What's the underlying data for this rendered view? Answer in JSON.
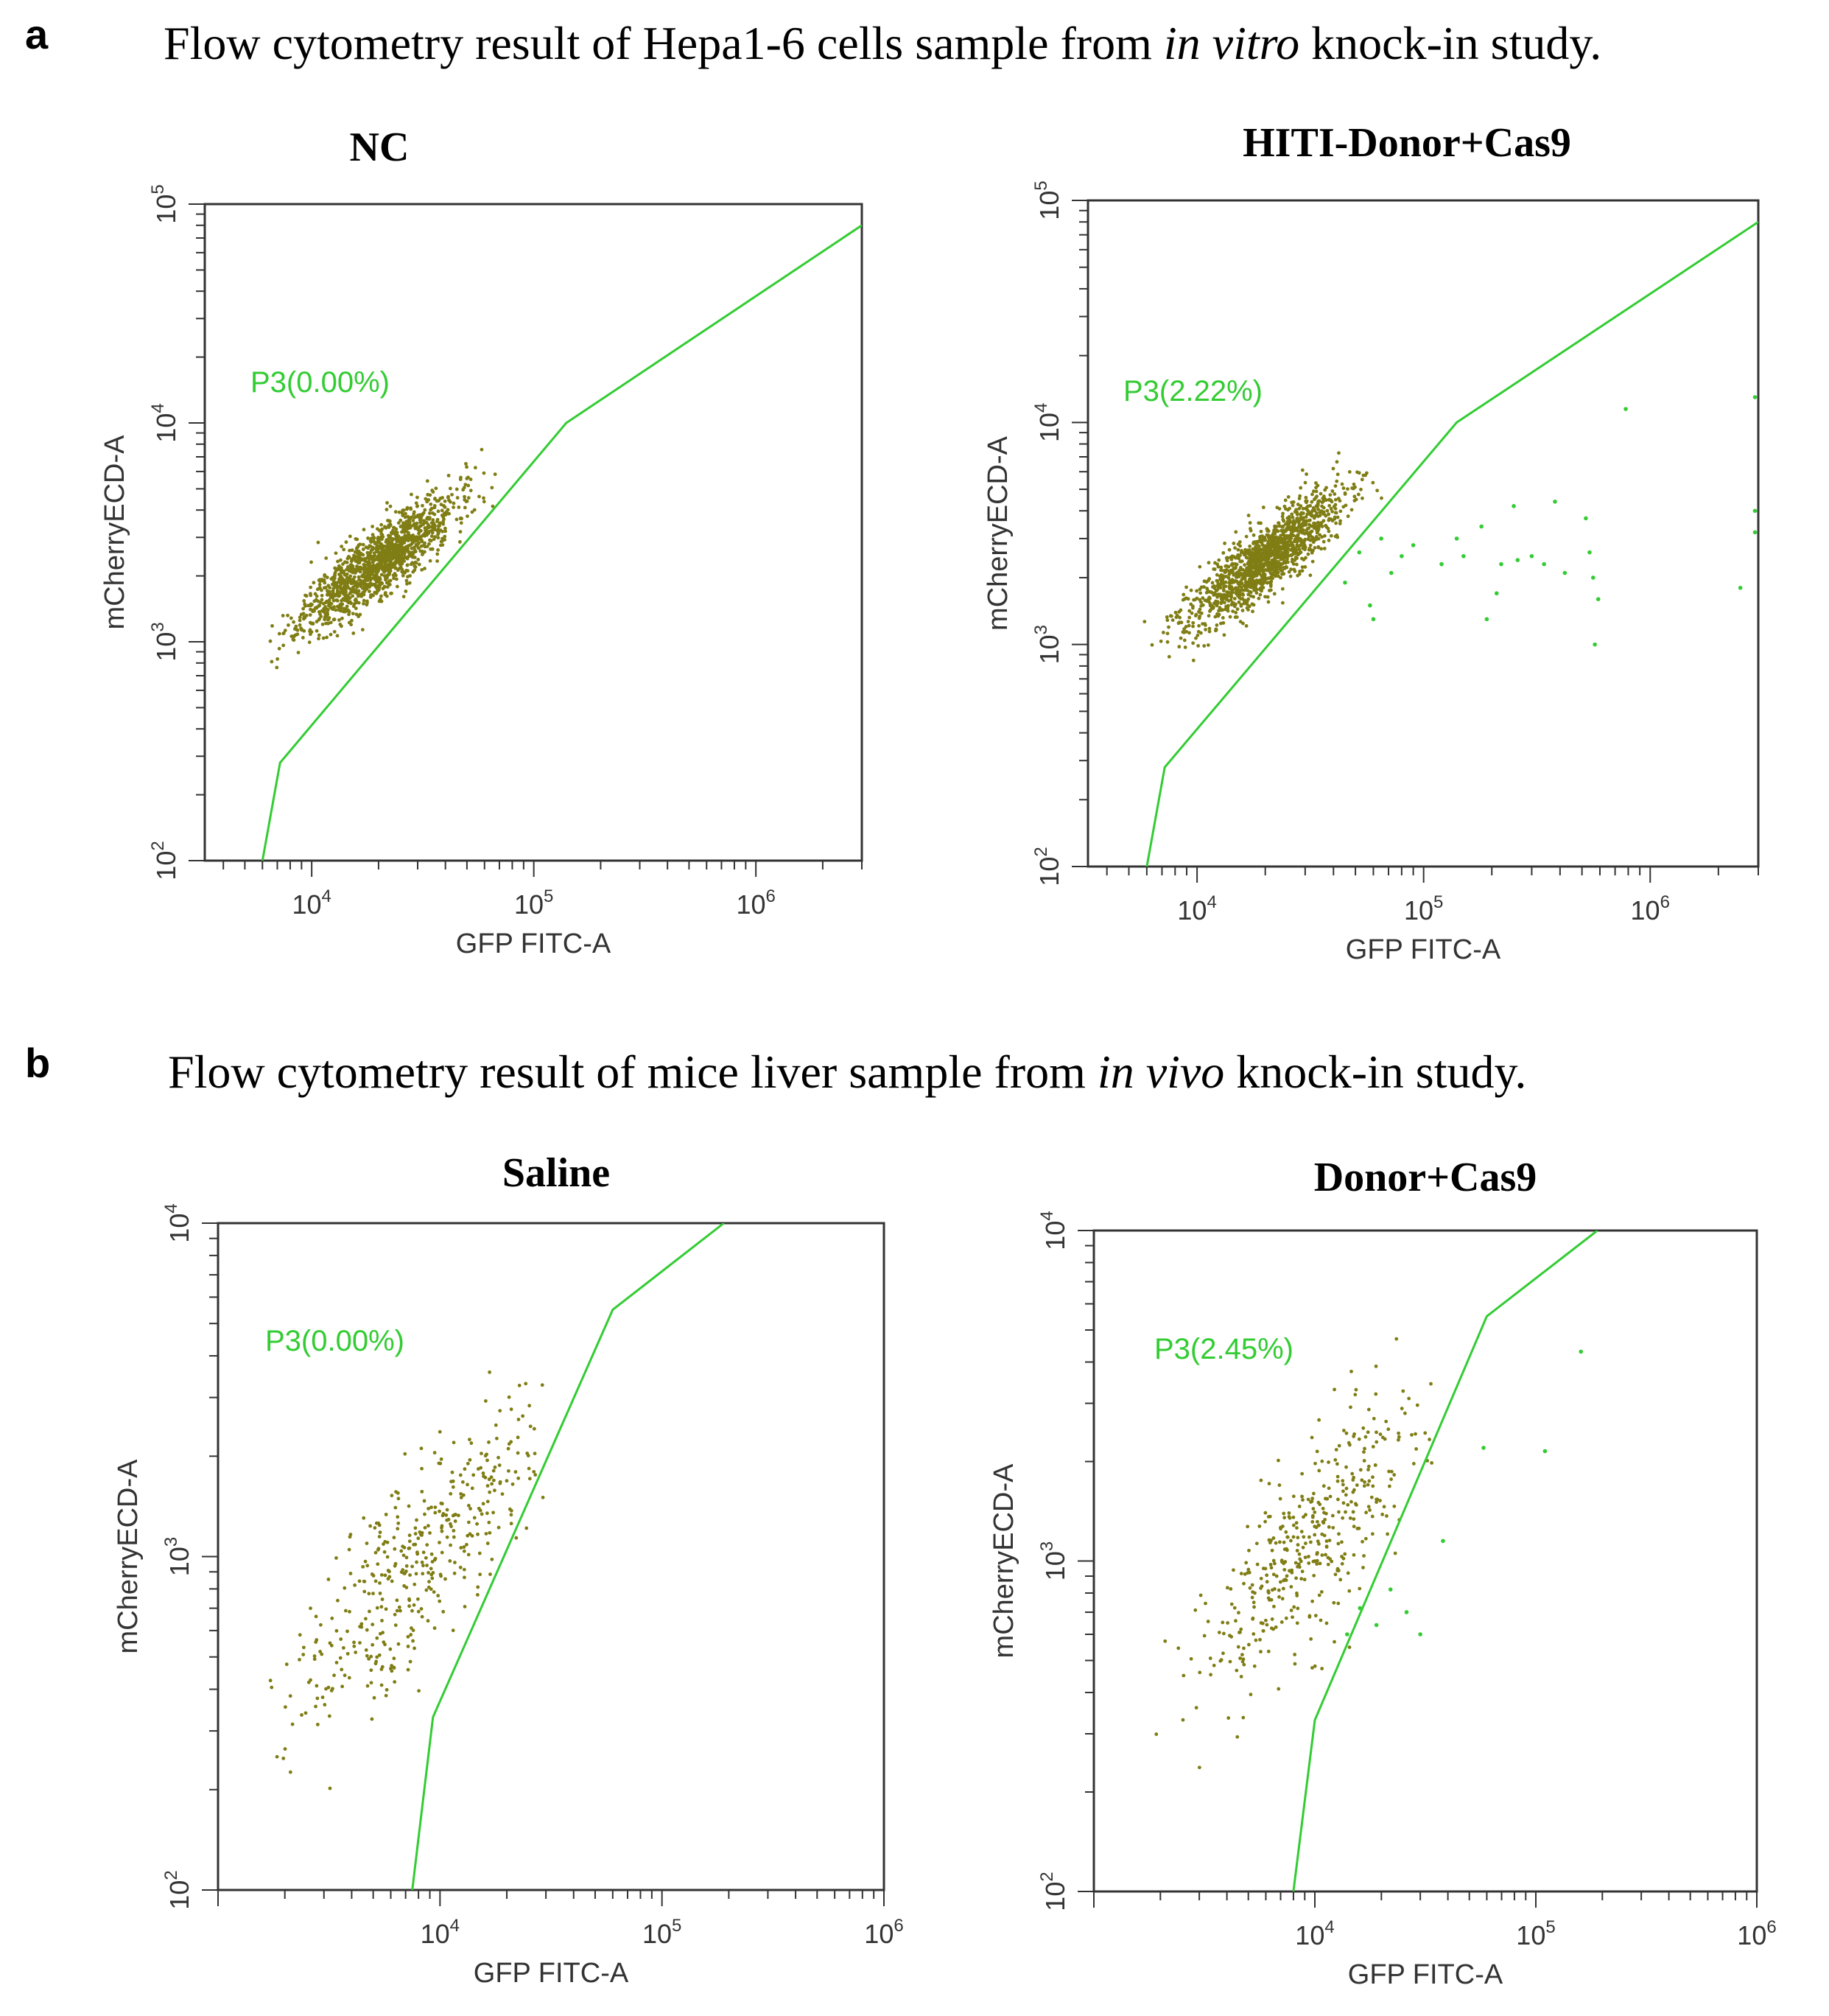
{
  "panels": [
    {
      "letter": "a",
      "title_prefix": "Flow cytometry result of Hepa1-6 cells sample from ",
      "title_italic": "in vitro",
      "title_suffix": " knock-in study."
    },
    {
      "letter": "b",
      "title_prefix": "Flow cytometry result of mice liver sample from ",
      "title_italic": "in vivo",
      "title_suffix": " knock-in study."
    }
  ],
  "colors": {
    "population": "#7f7d14",
    "gate": "#33cc33",
    "axis": "#333333"
  },
  "chart_data": [
    {
      "type": "scatter",
      "title": "NC",
      "xlabel": "GFP FITC-A",
      "ylabel": "mCherryECD-A",
      "xscale": "log",
      "yscale": "log",
      "xlim": [
        3300,
        3000000
      ],
      "ylim": [
        100,
        100000
      ],
      "xtick_labels": [
        {
          "base": "10",
          "exp": "4",
          "value": 10000
        },
        {
          "base": "10",
          "exp": "5",
          "value": 100000
        },
        {
          "base": "10",
          "exp": "6",
          "value": 1000000
        }
      ],
      "ytick_labels": [
        {
          "base": "10",
          "exp": "2",
          "value": 100
        },
        {
          "base": "10",
          "exp": "3",
          "value": 1000
        },
        {
          "base": "10",
          "exp": "4",
          "value": 10000
        },
        {
          "base": "10",
          "exp": "5",
          "value": 100000
        }
      ],
      "gate": {
        "name": "P3",
        "label": "P3(0.00%)",
        "percent": 0.0,
        "boundary": [
          [
            6000,
            100
          ],
          [
            7200,
            280
          ],
          [
            140000,
            10000
          ],
          [
            3000000,
            80000
          ]
        ]
      },
      "population": {
        "n": 1400,
        "seed": 11,
        "center": [
          20000,
          2300
        ],
        "spread": [
          0.17,
          0.15
        ],
        "corr": 0.85,
        "x_range": [
          4500,
          80000
        ],
        "y_range": [
          500,
          23000
        ]
      },
      "gated_events": []
    },
    {
      "type": "scatter",
      "title": "HITI-Donor+Cas9",
      "xlabel": "GFP FITC-A",
      "ylabel": "mCherryECD-A",
      "xscale": "log",
      "yscale": "log",
      "xlim": [
        3300,
        3000000
      ],
      "ylim": [
        100,
        100000
      ],
      "xtick_labels": [
        {
          "base": "10",
          "exp": "4",
          "value": 10000
        },
        {
          "base": "10",
          "exp": "5",
          "value": 100000
        },
        {
          "base": "10",
          "exp": "6",
          "value": 1000000
        }
      ],
      "ytick_labels": [
        {
          "base": "10",
          "exp": "2",
          "value": 100
        },
        {
          "base": "10",
          "exp": "3",
          "value": 1000
        },
        {
          "base": "10",
          "exp": "4",
          "value": 10000
        },
        {
          "base": "10",
          "exp": "5",
          "value": 100000
        }
      ],
      "gate": {
        "name": "P3",
        "label": "P3(2.22%)",
        "percent": 2.22,
        "boundary": [
          [
            6000,
            100
          ],
          [
            7200,
            280
          ],
          [
            140000,
            10000
          ],
          [
            3000000,
            80000
          ]
        ]
      },
      "population": {
        "n": 1400,
        "seed": 23,
        "center": [
          20000,
          2400
        ],
        "spread": [
          0.17,
          0.15
        ],
        "corr": 0.85,
        "x_range": [
          4000,
          90000
        ],
        "y_range": [
          400,
          75000
        ]
      },
      "gated_events": [
        [
          45000,
          1900
        ],
        [
          52000,
          2600
        ],
        [
          58000,
          1500
        ],
        [
          60000,
          1300
        ],
        [
          65000,
          3000
        ],
        [
          72000,
          2100
        ],
        [
          80000,
          2500
        ],
        [
          90000,
          2800
        ],
        [
          120000,
          2300
        ],
        [
          140000,
          3000
        ],
        [
          150000,
          2500
        ],
        [
          180000,
          3400
        ],
        [
          190000,
          1300
        ],
        [
          210000,
          1700
        ],
        [
          220000,
          2300
        ],
        [
          250000,
          4200
        ],
        [
          260000,
          2400
        ],
        [
          300000,
          2500
        ],
        [
          340000,
          2300
        ],
        [
          380000,
          4400
        ],
        [
          420000,
          2100
        ],
        [
          520000,
          3700
        ],
        [
          540000,
          2600
        ],
        [
          560000,
          2000
        ],
        [
          570000,
          1000
        ],
        [
          590000,
          1600
        ],
        [
          780000,
          11500
        ],
        [
          2500000,
          1800
        ],
        [
          2900000,
          4000
        ],
        [
          2900000,
          13000
        ],
        [
          2900000,
          3200
        ]
      ]
    },
    {
      "type": "scatter",
      "title": "Saline",
      "xlabel": "GFP FITC-A",
      "ylabel": "mCherryECD-A",
      "xscale": "log",
      "yscale": "log",
      "xlim": [
        1000,
        1000000
      ],
      "ylim": [
        100,
        10000
      ],
      "xtick_labels": [
        {
          "base": "10",
          "exp": "4",
          "value": 10000
        },
        {
          "base": "10",
          "exp": "5",
          "value": 100000
        },
        {
          "base": "10",
          "exp": "6",
          "value": 1000000
        }
      ],
      "ytick_labels": [
        {
          "base": "10",
          "exp": "2",
          "value": 100
        },
        {
          "base": "10",
          "exp": "3",
          "value": 1000
        },
        {
          "base": "10",
          "exp": "4",
          "value": 10000
        }
      ],
      "gate": {
        "name": "P3",
        "label": "P3(0.00%)",
        "percent": 0.0,
        "boundary": [
          [
            7500,
            100
          ],
          [
            9300,
            330
          ],
          [
            60000,
            5500
          ],
          [
            190000,
            10000
          ]
        ]
      },
      "population": {
        "n": 420,
        "seed": 37,
        "center": [
          8000,
          1000
        ],
        "spread": [
          0.28,
          0.24
        ],
        "corr": 0.8,
        "x_range": [
          1200,
          30000
        ],
        "y_range": [
          105,
          4500
        ]
      },
      "gated_events": []
    },
    {
      "type": "scatter",
      "title": "Donor+Cas9",
      "xlabel": "GFP FITC-A",
      "ylabel": "mCherryECD-A",
      "xscale": "log",
      "yscale": "log",
      "xlim": [
        1000,
        1000000
      ],
      "ylim": [
        100,
        10000
      ],
      "xtick_labels": [
        {
          "base": "10",
          "exp": "4",
          "value": 10000
        },
        {
          "base": "10",
          "exp": "5",
          "value": 100000
        },
        {
          "base": "10",
          "exp": "6",
          "value": 1000000
        }
      ],
      "ytick_labels": [
        {
          "base": "10",
          "exp": "2",
          "value": 100
        },
        {
          "base": "10",
          "exp": "3",
          "value": 1000
        },
        {
          "base": "10",
          "exp": "4",
          "value": 10000
        }
      ],
      "gate": {
        "name": "P3",
        "label": "P3(2.45%)",
        "percent": 2.45,
        "boundary": [
          [
            8000,
            100
          ],
          [
            10000,
            330
          ],
          [
            60000,
            5500
          ],
          [
            190000,
            10000
          ]
        ]
      },
      "population": {
        "n": 420,
        "seed": 53,
        "center": [
          10000,
          1150
        ],
        "spread": [
          0.27,
          0.24
        ],
        "corr": 0.8,
        "x_range": [
          1200,
          35000
        ],
        "y_range": [
          105,
          5500
        ]
      },
      "gated_events": [
        [
          14000,
          600
        ],
        [
          16000,
          720
        ],
        [
          19000,
          640
        ],
        [
          22000,
          820
        ],
        [
          26000,
          700
        ],
        [
          30000,
          600
        ],
        [
          38000,
          1150
        ],
        [
          58000,
          2200
        ],
        [
          110000,
          2150
        ],
        [
          160000,
          4300
        ]
      ]
    }
  ]
}
